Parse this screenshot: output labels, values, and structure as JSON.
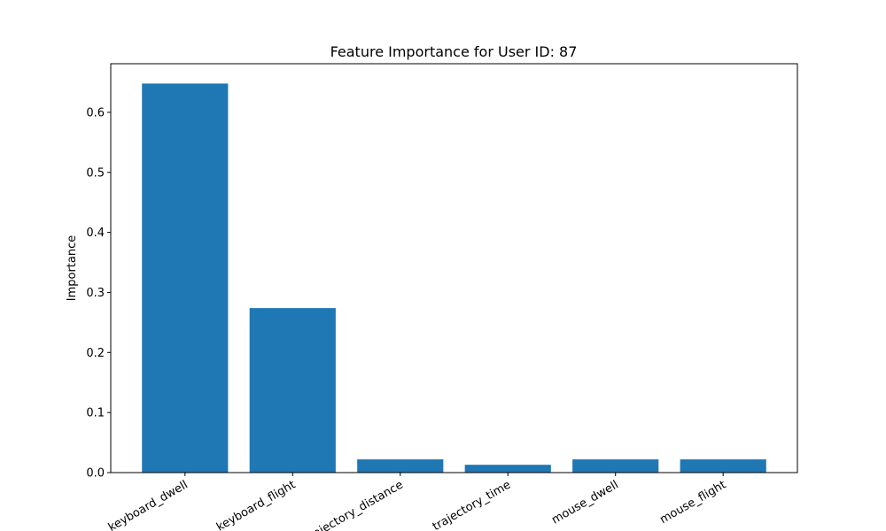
{
  "chart_data": {
    "type": "bar",
    "title": "Feature Importance for User ID: 87",
    "xlabel": "",
    "ylabel": "Importance",
    "categories": [
      "keyboard_dwell",
      "keyboard_flight",
      "trajectory_distance",
      "trajectory_time",
      "mouse_dwell",
      "mouse_flight"
    ],
    "values": [
      0.648,
      0.274,
      0.022,
      0.013,
      0.022,
      0.022
    ],
    "ylim": [
      0,
      0.681
    ],
    "yticks": [
      0.0,
      0.1,
      0.2,
      0.3,
      0.4,
      0.5,
      0.6
    ],
    "ytick_labels": [
      "0.0",
      "0.1",
      "0.2",
      "0.3",
      "0.4",
      "0.5",
      "0.6"
    ],
    "bar_color": "#1f77b4",
    "grid": false,
    "xtick_rotation": -30
  }
}
